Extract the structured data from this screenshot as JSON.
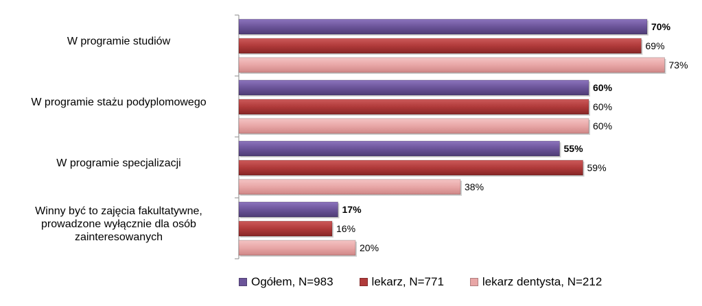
{
  "chart_data": {
    "type": "bar",
    "orientation": "horizontal",
    "categories": [
      "W programie studiów",
      "W programie stażu podyplomowego",
      "W programie specjalizacji",
      "Winny być to zajęcia fakultatywne, prowadzone wyłącznie dla osób zainteresowanych"
    ],
    "category_lines": [
      [
        "W programie studiów"
      ],
      [
        "W programie stażu podyplomowego"
      ],
      [
        "W programie specjalizacji"
      ],
      [
        "Winny być to zajęcia fakultatywne,",
        "prowadzone wyłącznie dla osób",
        "zainteresowanych"
      ]
    ],
    "series": [
      {
        "name": "Ogółem, N=983",
        "values": [
          70,
          60,
          55,
          17
        ],
        "labels": [
          "70%",
          "60%",
          "55%",
          "17%"
        ],
        "color": "#6B5499",
        "bold": true
      },
      {
        "name": "lekarz, N=771",
        "values": [
          69,
          60,
          59,
          16
        ],
        "labels": [
          "69%",
          "60%",
          "59%",
          "16%"
        ],
        "color": "#B03A3A",
        "bold": false
      },
      {
        "name": "lekarz dentysta, N=212",
        "values": [
          73,
          60,
          38,
          20
        ],
        "labels": [
          "73%",
          "60%",
          "38%",
          "20%"
        ],
        "color": "#E8A6A6",
        "bold": false
      }
    ],
    "xlim": [
      0,
      100
    ],
    "grid": false,
    "legend_position": "bottom"
  }
}
